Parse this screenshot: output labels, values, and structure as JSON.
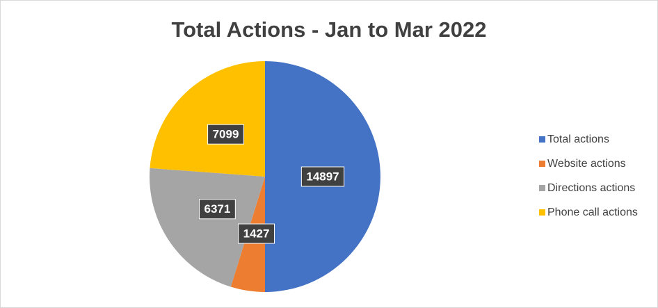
{
  "chart_data": {
    "type": "pie",
    "title": "Total Actions - Jan to Mar 2022",
    "categories": [
      "Total actions",
      "Website actions",
      "Directions actions",
      "Phone call actions"
    ],
    "values": [
      14897,
      1427,
      6371,
      7099
    ],
    "colors": [
      "#4472c4",
      "#ed7d31",
      "#a5a5a5",
      "#ffc000"
    ],
    "legend": "right"
  }
}
